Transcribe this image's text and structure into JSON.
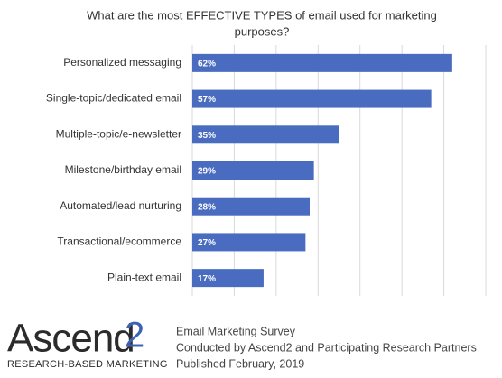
{
  "chart_data": {
    "type": "hbar",
    "title": "What are the most EFFECTIVE TYPES of email used for marketing purposes?",
    "categories": [
      "Personalized messaging",
      "Single-topic/dedicated email",
      "Multiple-topic/e-newsletter",
      "Milestone/birthday email",
      "Automated/lead nurturing",
      "Transactional/ecommerce",
      "Plain-text email"
    ],
    "values": [
      62,
      57,
      35,
      29,
      28,
      27,
      17
    ],
    "value_labels": [
      "62%",
      "57%",
      "35%",
      "29%",
      "28%",
      "27%",
      "17%"
    ],
    "color": "#4a6cc0",
    "xlim": [
      0,
      70
    ],
    "xticks": [
      0,
      10,
      20,
      30,
      40,
      50,
      60,
      70
    ],
    "grid": true
  },
  "logo": {
    "name": "Ascend",
    "mark": "2",
    "tagline": "RESEARCH-BASED MARKETING"
  },
  "footer": {
    "lines": [
      "Email Marketing Survey",
      "Conducted by Ascend2 and Participating Research Partners",
      "Published February, 2019"
    ]
  }
}
